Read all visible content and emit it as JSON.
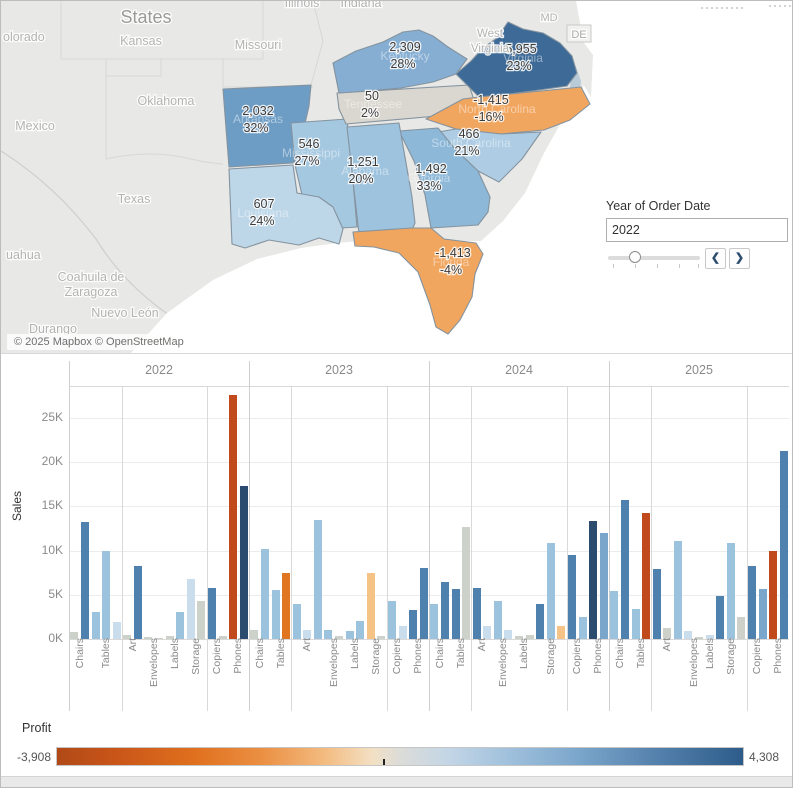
{
  "map": {
    "title": "States",
    "attribution": "© 2025 Mapbox © OpenStreetMap",
    "states": [
      {
        "id": "arkansas",
        "name": "Arkansas",
        "value": "2,032",
        "pct": "32%",
        "color": "#6d9dc5"
      },
      {
        "id": "mississippi",
        "name": "Mississippi",
        "value": "546",
        "pct": "27%",
        "color": "#a5c8e1"
      },
      {
        "id": "louisiana",
        "name": "Louisiana",
        "value": "607",
        "pct": "24%",
        "color": "#bdd7e9"
      },
      {
        "id": "tennessee",
        "name": "Tennessee",
        "value": "50",
        "pct": "2%",
        "color": "#d9d7cf"
      },
      {
        "id": "kentucky",
        "name": "Kentucky",
        "value": "2,309",
        "pct": "28%",
        "color": "#85aed2"
      },
      {
        "id": "virginia",
        "name": "Virginia",
        "value": "5,955",
        "pct": "23%",
        "color": "#3d6a96"
      },
      {
        "id": "north-carolina",
        "name": "North Carolina",
        "value": "-1,415",
        "pct": "-16%",
        "color": "#f1a65f"
      },
      {
        "id": "south-carolina",
        "name": "South Carolina",
        "value": "466",
        "pct": "21%",
        "color": "#aecde4"
      },
      {
        "id": "georgia",
        "name": "Georgia",
        "value": "1,492",
        "pct": "33%",
        "color": "#8db8d8"
      },
      {
        "id": "alabama",
        "name": "Alabama",
        "value": "1,251",
        "pct": "20%",
        "color": "#9ec3de"
      },
      {
        "id": "florida",
        "name": "Florida",
        "value": "-1,413",
        "pct": "-4%",
        "color": "#f1a65f"
      }
    ],
    "background_labels": [
      {
        "id": "states-title",
        "text": "States"
      },
      {
        "id": "colorado",
        "text": "olorado"
      },
      {
        "id": "kansas",
        "text": "Kansas"
      },
      {
        "id": "missouri",
        "text": "Missouri"
      },
      {
        "id": "oklahoma",
        "text": "Oklahoma"
      },
      {
        "id": "texas",
        "text": "Texas"
      },
      {
        "id": "mexico",
        "text": "Mexico"
      },
      {
        "id": "illinois",
        "text": "Illinois"
      },
      {
        "id": "indiana",
        "text": "Indiana"
      },
      {
        "id": "west-virginia",
        "text": "West Virginia"
      },
      {
        "id": "md",
        "text": "MD"
      },
      {
        "id": "de",
        "text": "DE"
      },
      {
        "id": "chihuahua",
        "text": "uahua"
      },
      {
        "id": "coahuila",
        "text": "Coahuila de Zaragoza"
      },
      {
        "id": "nuevo-leon",
        "text": "Nuevo León"
      },
      {
        "id": "durango",
        "text": "Durango"
      }
    ]
  },
  "filter": {
    "label": "Year of Order Date",
    "value": "2022",
    "chevron_left": "❮",
    "chevron_right": "❯"
  },
  "chart_data": {
    "type": "bar",
    "ylabel": "Sales",
    "y_ticks": [
      "0K",
      "5K",
      "10K",
      "15K",
      "20K",
      "25K"
    ],
    "ylim": [
      0,
      28600
    ],
    "grid": true,
    "color_by": "Profit",
    "palette": {
      "red": "#c14a1c",
      "orange": "#e0761f",
      "tan": "#f5c385",
      "gray": "#ccd1ca",
      "paleblue": "#c9dded",
      "lightblue": "#9cc3de",
      "medblue": "#7aa6cc",
      "blue": "#4e81ad",
      "navy": "#2b4b6f"
    },
    "years": [
      {
        "label": "2022",
        "groups": [
          {
            "category": "Chairs",
            "bars": [
              {
                "v": 800,
                "c": "gray"
              },
              {
                "v": 13200,
                "c": "blue"
              }
            ]
          },
          {
            "category": "Tables",
            "bars": [
              {
                "v": 3000,
                "c": "lightblue"
              },
              {
                "v": 9900,
                "c": "lightblue"
              },
              {
                "v": 1900,
                "c": "paleblue"
              }
            ]
          },
          {
            "category": "Art",
            "bars": [
              {
                "v": 500,
                "c": "gray"
              },
              {
                "v": 8300,
                "c": "blue"
              }
            ]
          },
          {
            "category": "Envelopes",
            "bars": [
              {
                "v": 250,
                "c": "gray"
              },
              {
                "v": 150,
                "c": "gray"
              }
            ]
          },
          {
            "category": "Labels",
            "bars": [
              {
                "v": 350,
                "c": "gray"
              },
              {
                "v": 3000,
                "c": "lightblue"
              }
            ]
          },
          {
            "category": "Storage",
            "bars": [
              {
                "v": 6800,
                "c": "paleblue"
              },
              {
                "v": 4300,
                "c": "gray"
              }
            ]
          },
          {
            "category": "Copiers",
            "bars": [
              {
                "v": 5800,
                "c": "blue"
              },
              {
                "v": 300,
                "c": "gray"
              }
            ]
          },
          {
            "category": "Phones",
            "bars": [
              {
                "v": 27600,
                "c": "red"
              },
              {
                "v": 17300,
                "c": "navy"
              }
            ]
          }
        ]
      },
      {
        "label": "2023",
        "groups": [
          {
            "category": "Chairs",
            "bars": [
              {
                "v": 1000,
                "c": "gray"
              },
              {
                "v": 10200,
                "c": "lightblue"
              }
            ]
          },
          {
            "category": "Tables",
            "bars": [
              {
                "v": 5500,
                "c": "lightblue"
              },
              {
                "v": 7500,
                "c": "orange"
              }
            ]
          },
          {
            "category": "Art",
            "bars": [
              {
                "v": 3900,
                "c": "lightblue"
              },
              {
                "v": 1000,
                "c": "paleblue"
              },
              {
                "v": 13400,
                "c": "lightblue"
              }
            ]
          },
          {
            "category": "Envelopes",
            "bars": [
              {
                "v": 1000,
                "c": "lightblue"
              },
              {
                "v": 300,
                "c": "gray"
              }
            ]
          },
          {
            "category": "Labels",
            "bars": [
              {
                "v": 900,
                "c": "lightblue"
              },
              {
                "v": 2000,
                "c": "lightblue"
              }
            ]
          },
          {
            "category": "Storage",
            "bars": [
              {
                "v": 7500,
                "c": "tan"
              },
              {
                "v": 300,
                "c": "gray"
              }
            ]
          },
          {
            "category": "Copiers",
            "bars": [
              {
                "v": 4300,
                "c": "lightblue"
              },
              {
                "v": 1500,
                "c": "paleblue"
              }
            ]
          },
          {
            "category": "Phones",
            "bars": [
              {
                "v": 3300,
                "c": "blue"
              },
              {
                "v": 8000,
                "c": "blue"
              }
            ]
          }
        ]
      },
      {
        "label": "2024",
        "groups": [
          {
            "category": "Chairs",
            "bars": [
              {
                "v": 3900,
                "c": "lightblue"
              },
              {
                "v": 6400,
                "c": "blue"
              }
            ]
          },
          {
            "category": "Tables",
            "bars": [
              {
                "v": 5600,
                "c": "blue"
              },
              {
                "v": 12700,
                "c": "gray"
              }
            ]
          },
          {
            "category": "Art",
            "bars": [
              {
                "v": 5800,
                "c": "blue"
              },
              {
                "v": 1500,
                "c": "paleblue"
              }
            ]
          },
          {
            "category": "Envelopes",
            "bars": [
              {
                "v": 4300,
                "c": "lightblue"
              },
              {
                "v": 1000,
                "c": "paleblue"
              }
            ]
          },
          {
            "category": "Labels",
            "bars": [
              {
                "v": 300,
                "c": "gray"
              },
              {
                "v": 500,
                "c": "gray"
              }
            ]
          },
          {
            "category": "Storage",
            "bars": [
              {
                "v": 4000,
                "c": "blue"
              },
              {
                "v": 10900,
                "c": "lightblue"
              },
              {
                "v": 1500,
                "c": "tan"
              }
            ]
          },
          {
            "category": "Copiers",
            "bars": [
              {
                "v": 9500,
                "c": "blue"
              },
              {
                "v": 2500,
                "c": "lightblue"
              }
            ]
          },
          {
            "category": "Phones",
            "bars": [
              {
                "v": 13300,
                "c": "navy"
              },
              {
                "v": 12000,
                "c": "medblue"
              }
            ]
          }
        ]
      },
      {
        "label": "2025",
        "groups": [
          {
            "category": "Chairs",
            "bars": [
              {
                "v": 5400,
                "c": "lightblue"
              },
              {
                "v": 15700,
                "c": "blue"
              }
            ]
          },
          {
            "category": "Tables",
            "bars": [
              {
                "v": 3400,
                "c": "lightblue"
              },
              {
                "v": 14200,
                "c": "red"
              }
            ]
          },
          {
            "category": "Art",
            "bars": [
              {
                "v": 7900,
                "c": "blue"
              },
              {
                "v": 1200,
                "c": "gray"
              },
              {
                "v": 11100,
                "c": "lightblue"
              }
            ]
          },
          {
            "category": "Envelopes",
            "bars": [
              {
                "v": 900,
                "c": "paleblue"
              },
              {
                "v": 200,
                "c": "gray"
              }
            ]
          },
          {
            "category": "Labels",
            "bars": [
              {
                "v": 500,
                "c": "paleblue"
              }
            ]
          },
          {
            "category": "Storage",
            "bars": [
              {
                "v": 4900,
                "c": "blue"
              },
              {
                "v": 10800,
                "c": "lightblue"
              },
              {
                "v": 2500,
                "c": "gray"
              }
            ]
          },
          {
            "category": "Copiers",
            "bars": [
              {
                "v": 8300,
                "c": "blue"
              },
              {
                "v": 5600,
                "c": "medblue"
              }
            ]
          },
          {
            "category": "Phones",
            "bars": [
              {
                "v": 10000,
                "c": "red"
              },
              {
                "v": 21300,
                "c": "blue"
              }
            ]
          }
        ]
      }
    ]
  },
  "legend": {
    "title": "Profit",
    "min": "-3,908",
    "max": "4,308"
  }
}
